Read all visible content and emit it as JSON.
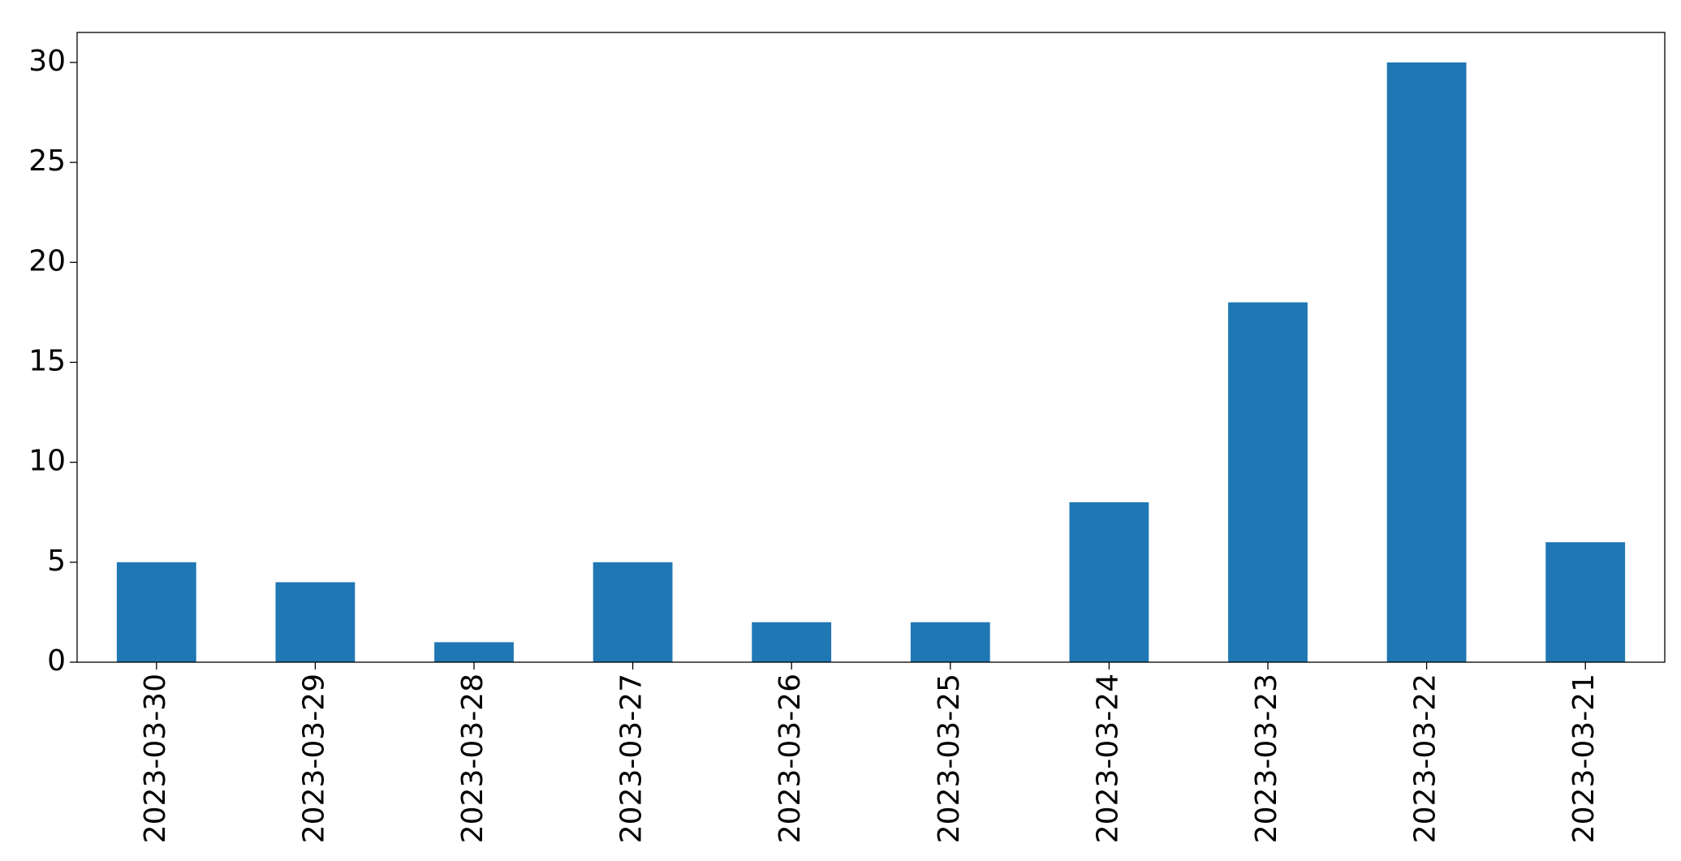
{
  "chart_data": {
    "type": "bar",
    "categories": [
      "2023-03-30",
      "2023-03-29",
      "2023-03-28",
      "2023-03-27",
      "2023-03-26",
      "2023-03-25",
      "2023-03-24",
      "2023-03-23",
      "2023-03-22",
      "2023-03-21"
    ],
    "values": [
      5,
      4,
      1,
      5,
      2,
      2,
      8,
      18,
      30,
      6
    ],
    "color": "#1f77b4",
    "ylim": [
      0,
      31.5
    ],
    "yticks": [
      0,
      5,
      10,
      15,
      20,
      25,
      30
    ],
    "grid": false
  }
}
